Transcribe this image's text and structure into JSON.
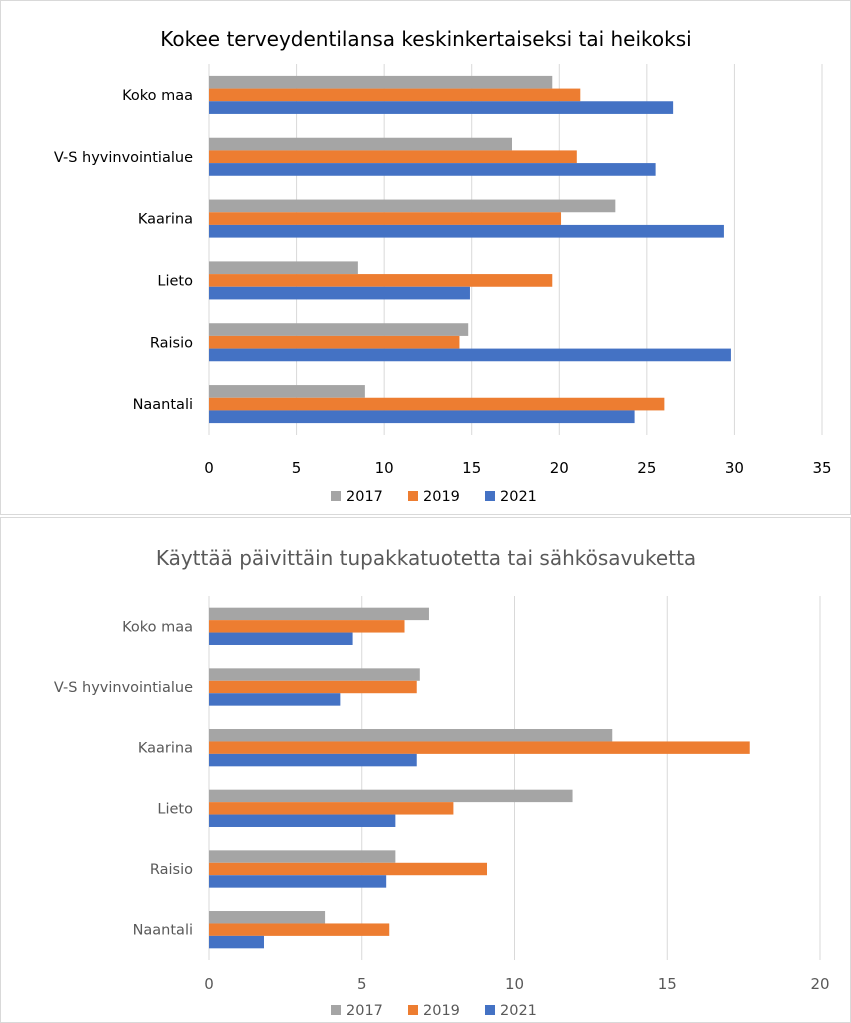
{
  "chart_data": [
    {
      "type": "bar",
      "orientation": "horizontal",
      "title": "Kokee terveydentilansa keskinkertaiseksi tai heikoksi",
      "categories": [
        "Koko maa",
        "V-S hyvinvointialue",
        "Kaarina",
        "Lieto",
        "Raisio",
        "Naantali"
      ],
      "series": [
        {
          "name": "2017",
          "color": "#a5a5a5",
          "values": [
            19.6,
            17.3,
            23.2,
            8.5,
            14.8,
            8.9
          ]
        },
        {
          "name": "2019",
          "color": "#ed7d31",
          "values": [
            21.2,
            21.0,
            20.1,
            19.6,
            14.3,
            26.0
          ]
        },
        {
          "name": "2021",
          "color": "#4472c4",
          "values": [
            26.5,
            25.5,
            29.4,
            14.9,
            29.8,
            24.3
          ]
        }
      ],
      "xlim": [
        0,
        35
      ],
      "xticks": [
        0,
        5,
        10,
        15,
        20,
        25,
        30,
        35
      ],
      "grid": true,
      "legend": "bottom",
      "text_color": "#000000"
    },
    {
      "type": "bar",
      "orientation": "horizontal",
      "title": "Käyttää päivittäin tupakkatuotetta tai sähkösavuketta",
      "categories": [
        "Koko maa",
        "V-S hyvinvointialue",
        "Kaarina",
        "Lieto",
        "Raisio",
        "Naantali"
      ],
      "series": [
        {
          "name": "2017",
          "color": "#a5a5a5",
          "values": [
            7.2,
            6.9,
            13.2,
            11.9,
            6.1,
            3.8
          ]
        },
        {
          "name": "2019",
          "color": "#ed7d31",
          "values": [
            6.4,
            6.8,
            17.7,
            8.0,
            9.1,
            5.9
          ]
        },
        {
          "name": "2021",
          "color": "#4472c4",
          "values": [
            4.7,
            4.3,
            6.8,
            6.1,
            5.8,
            1.8
          ]
        }
      ],
      "xlim": [
        0,
        20
      ],
      "xticks": [
        0,
        5,
        10,
        15,
        20
      ],
      "grid": true,
      "legend": "bottom",
      "text_color": "#595959"
    }
  ]
}
